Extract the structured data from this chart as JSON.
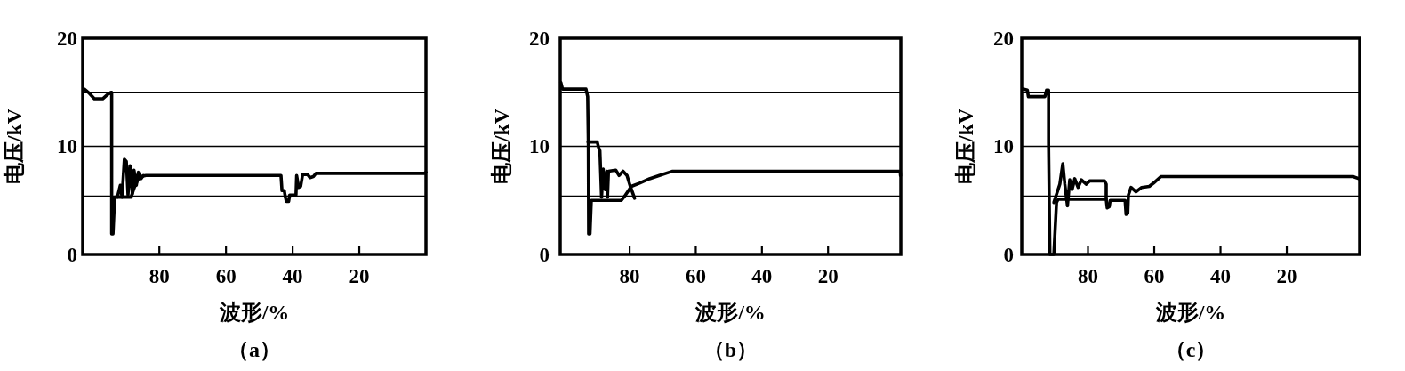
{
  "chart_data": [
    {
      "type": "line",
      "title": "（a）",
      "xlabel": "波形/%",
      "ylabel": "电压/kV",
      "xlim": [
        103,
        0
      ],
      "xticks": [
        80,
        60,
        40,
        20
      ],
      "ylim": [
        0,
        20
      ],
      "yticks": [
        0,
        10,
        20
      ],
      "ref_lines": [
        {
          "axis": "y",
          "value": 15
        },
        {
          "axis": "y",
          "value": 10
        },
        {
          "axis": "y",
          "value": 5.4
        }
      ],
      "series": [
        {
          "color": "#000000",
          "x": [
            102.5,
            101,
            99.5,
            97,
            95.5,
            94.5,
            94.3,
            94.3,
            93.9,
            93.4,
            88.5,
            87.5,
            86.5,
            85.5,
            84,
            43.5,
            43.2,
            42.5,
            42.3,
            41.9,
            41.2,
            40.9,
            39,
            38.8,
            38.2,
            37.6,
            37,
            35.5,
            34.8,
            33.8,
            33,
            0.5,
            0
          ],
          "values": [
            15.3,
            14.9,
            14.4,
            14.4,
            14.8,
            15.0,
            15.0,
            1.9,
            1.9,
            5.3,
            5.3,
            6.2,
            6.9,
            7.2,
            7.3,
            7.3,
            5.9,
            5.9,
            5.5,
            4.9,
            4.9,
            5.5,
            5.5,
            7.3,
            6.2,
            6.3,
            7.4,
            7.4,
            7.1,
            7.2,
            7.5,
            7.5,
            7.6
          ]
        },
        {
          "color": "#000000",
          "x": [
            92.6,
            91.7,
            91.2,
            90.5,
            89.9,
            89.4,
            88.8,
            88.1,
            87.6,
            86.9,
            86.3,
            85.5,
            84.8
          ],
          "values": [
            5.3,
            6.4,
            5.3,
            8.8,
            8.6,
            5.5,
            8.2,
            5.6,
            7.8,
            6.4,
            7.6,
            7.0,
            7.3
          ]
        }
      ]
    },
    {
      "type": "line",
      "title": "（b）",
      "xlabel": "波形/%",
      "ylabel": "电压/kV",
      "xlim": [
        101,
        -2
      ],
      "xticks": [
        80,
        60,
        40,
        20
      ],
      "ylim": [
        0,
        20
      ],
      "yticks": [
        0,
        10,
        20
      ],
      "ref_lines": [
        {
          "axis": "y",
          "value": 15
        },
        {
          "axis": "y",
          "value": 10
        },
        {
          "axis": "y",
          "value": 5.4
        }
      ],
      "series": [
        {
          "color": "#000000",
          "x": [
            100.8,
            100.3,
            93.2,
            92.7,
            92.5,
            92.4,
            92.0,
            91.6,
            82.5,
            81.5,
            79.5,
            77,
            74,
            71,
            68,
            67,
            -1.8,
            -1.9
          ],
          "values": [
            15.9,
            15.3,
            15.3,
            14.6,
            10.4,
            1.9,
            1.9,
            5.0,
            5.0,
            5.4,
            6.3,
            6.6,
            7.0,
            7.3,
            7.6,
            7.7,
            7.7,
            7.3
          ]
        },
        {
          "color": "#000000",
          "x": [
            92.6,
            89.8,
            89.4,
            89.0,
            88.5,
            88.0,
            87.4,
            86.9,
            86.7,
            86.4,
            84.2,
            83.2,
            82,
            80.8,
            79.8,
            78.5
          ],
          "values": [
            10.4,
            10.4,
            9.9,
            9.6,
            5.3,
            7.9,
            6.0,
            7.7,
            5.3,
            7.7,
            7.8,
            7.3,
            7.7,
            7.3,
            6.3,
            5.2
          ]
        }
      ]
    },
    {
      "type": "line",
      "title": "（c）",
      "xlabel": "波形/%",
      "ylabel": "电压/kV",
      "xlim": [
        100,
        -2
      ],
      "xticks": [
        80,
        60,
        40,
        20
      ],
      "ylim": [
        0,
        20
      ],
      "yticks": [
        0,
        10,
        20
      ],
      "ref_lines": [
        {
          "axis": "y",
          "value": 15
        },
        {
          "axis": "y",
          "value": 10
        },
        {
          "axis": "y",
          "value": 5.4
        }
      ],
      "series": [
        {
          "color": "#000000",
          "x": [
            99.6,
            98.3,
            98.0,
            93.0,
            92.5,
            91.9,
            91.9,
            91.7,
            91.5,
            90.3,
            89.8,
            89.5,
            89.0,
            74.5,
            74.2,
            73.6,
            73.3,
            68.8,
            68.5,
            68.0,
            67.8,
            67.0,
            65.5,
            63.8,
            61.5,
            60.2,
            58.0,
            0,
            -1.9
          ],
          "values": [
            15.3,
            15.2,
            14.6,
            14.6,
            15.2,
            15.2,
            10.3,
            5.0,
            0.0,
            0.0,
            3.0,
            4.8,
            5.1,
            5.1,
            4.3,
            4.4,
            5.0,
            5.0,
            3.7,
            3.8,
            5.5,
            6.2,
            5.8,
            6.2,
            6.3,
            6.6,
            7.2,
            7.2,
            7.0
          ]
        },
        {
          "color": "#000000",
          "x": [
            90.3,
            88.5,
            87.6,
            87.0,
            86.2,
            85.5,
            84.8,
            84.0,
            83.0,
            82.0,
            80.5,
            79.5,
            75.0,
            74.5,
            74.5
          ],
          "values": [
            4.8,
            6.5,
            8.4,
            6.5,
            4.5,
            6.9,
            6.0,
            7.0,
            6.2,
            6.9,
            6.5,
            6.8,
            6.8,
            6.5,
            5.1
          ]
        }
      ]
    }
  ]
}
